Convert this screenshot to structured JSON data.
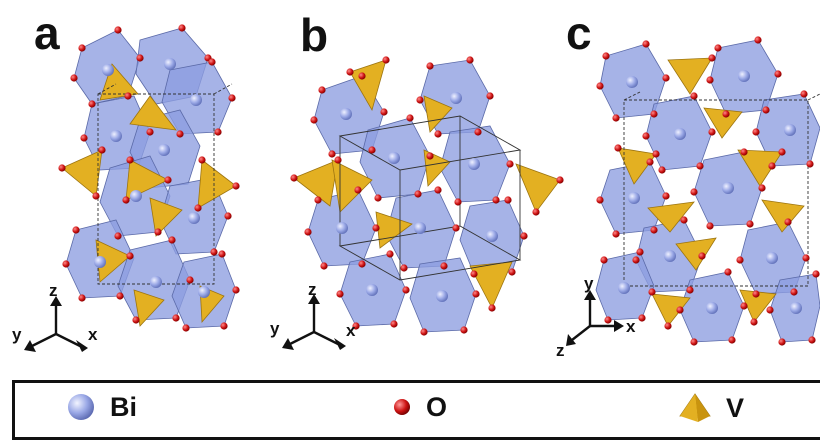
{
  "panels": [
    {
      "label": "a",
      "axes": {
        "up": "z",
        "left": "y",
        "right": "x"
      }
    },
    {
      "label": "b",
      "axes": {
        "up": "z",
        "left": "y",
        "right": "x"
      }
    },
    {
      "label": "c",
      "axes": {
        "up": "y",
        "left": "z",
        "right": "x"
      }
    }
  ],
  "legend": [
    {
      "symbol": "Bi",
      "label": "Bi",
      "color": "#9aa8e6",
      "icon": "sphere-icon"
    },
    {
      "symbol": "O",
      "label": "O",
      "color": "#cc1111",
      "icon": "small-sphere-icon"
    },
    {
      "symbol": "V",
      "label": "V",
      "color": "#e0ad1a",
      "icon": "tetrahedron-icon"
    }
  ],
  "colors": {
    "polyhedron_bi": "#8d9ee0",
    "polyhedron_v": "#e3b022",
    "oxygen": "#cc1111",
    "cell_edge": "#333333"
  }
}
